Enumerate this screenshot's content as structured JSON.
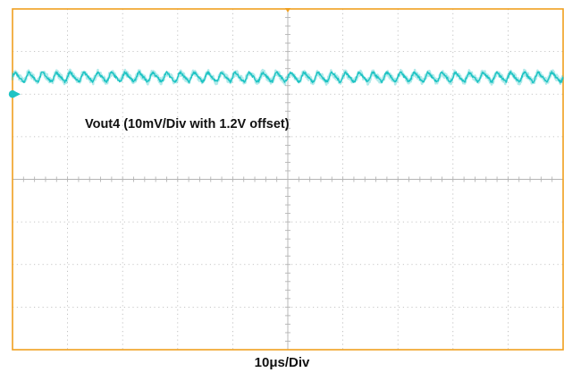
{
  "chart_data": {
    "type": "line",
    "title": "",
    "trace_label": "Vout4 (10mV/Div with 1.2V offset)",
    "xlabel": "10μs/Div",
    "ylabel": "",
    "divisions": {
      "horizontal": 10,
      "vertical": 8
    },
    "x_unit": "μs",
    "x_per_div": 10,
    "xlim": [
      0,
      100
    ],
    "ylim": [
      -60,
      20
    ],
    "y_unit": "mV",
    "y_per_div": 10,
    "grid": true,
    "ground_reference_mV": 0,
    "series": [
      {
        "color": "#1fc4c4",
        "mean_mV": 4,
        "ripple_peak_to_peak_mV": 2.4,
        "ripple_period_us": 2.5
      }
    ]
  },
  "colors": {
    "trace": "#1fc4c4",
    "grid": "#b4b4b4",
    "frame": "#f0a020",
    "trigger_marker": "#f0a020"
  }
}
